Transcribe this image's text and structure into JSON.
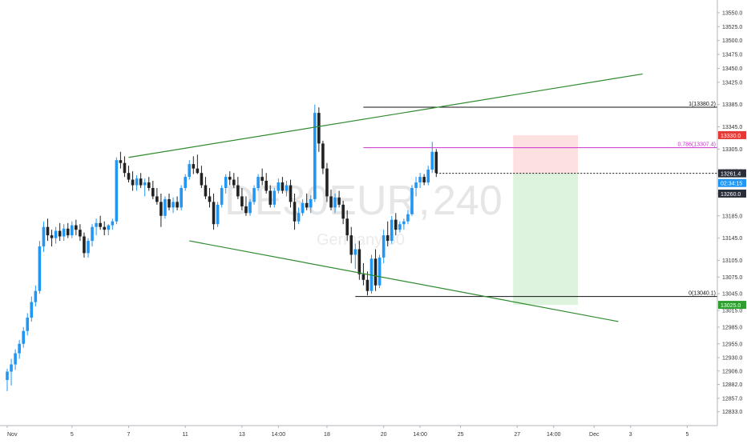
{
  "chart_data": {
    "type": "candlestick",
    "watermark": {
      "symbol": "DE30EUR",
      "interval": "240",
      "name": "Germany 30"
    },
    "colors": {
      "up": "#2196f3",
      "down": "#222222",
      "trendline": "#2e8b2e",
      "fib_level": "#cc33cc",
      "level_line": "#111111",
      "stop_zone": "#fde0e0",
      "target_zone": "#ddf3dd",
      "stop_tag": "#e53935",
      "target_tag": "#2e9e2e",
      "price_tag": "#2a2e39",
      "timer_tag": "#2196f3"
    },
    "ylim": [
      12785,
      13570
    ],
    "y_ticks": [
      "12810.0",
      "12833.0",
      "12857.0",
      "12882.0",
      "12906.0",
      "12930.0",
      "12955.0",
      "12985.0",
      "13015.0",
      "13045.0",
      "13075.0",
      "13105.0",
      "13145.0",
      "13185.0",
      "13225.0",
      "13265.0",
      "13305.0",
      "13345.0",
      "13385.0",
      "13425.0",
      "13450.0",
      "13475.0",
      "13500.0",
      "13525.0",
      "13550.0"
    ],
    "x_ticks": [
      {
        "label": "Nov",
        "bar": 0
      },
      {
        "label": "5",
        "bar": 16
      },
      {
        "label": "7",
        "bar": 30
      },
      {
        "label": "11",
        "bar": 44
      },
      {
        "label": "13",
        "bar": 58
      },
      {
        "label": "14:00",
        "bar": 67
      },
      {
        "label": "18",
        "bar": 79
      },
      {
        "label": "20",
        "bar": 93
      },
      {
        "label": "14:00",
        "bar": 102
      },
      {
        "label": "25",
        "bar": 112
      },
      {
        "label": "27",
        "bar": 126
      },
      {
        "label": "14:00",
        "bar": 135
      },
      {
        "label": "Dec",
        "bar": 145
      },
      {
        "label": "3",
        "bar": 154
      },
      {
        "label": "5",
        "bar": 168
      }
    ],
    "candles": [
      [
        12890,
        12910,
        12870,
        12905
      ],
      [
        12905,
        12928,
        12880,
        12918
      ],
      [
        12918,
        12945,
        12908,
        12938
      ],
      [
        12938,
        12962,
        12928,
        12955
      ],
      [
        12955,
        12985,
        12948,
        12978
      ],
      [
        12978,
        13010,
        12970,
        13002
      ],
      [
        13002,
        13040,
        12995,
        13030
      ],
      [
        13030,
        13060,
        13022,
        13050
      ],
      [
        13050,
        13140,
        13045,
        13130
      ],
      [
        13130,
        13175,
        13120,
        13165
      ],
      [
        13165,
        13180,
        13140,
        13150
      ],
      [
        13150,
        13160,
        13130,
        13145
      ],
      [
        13145,
        13165,
        13135,
        13158
      ],
      [
        13158,
        13172,
        13140,
        13148
      ],
      [
        13148,
        13170,
        13140,
        13162
      ],
      [
        13162,
        13172,
        13145,
        13150
      ],
      [
        13150,
        13175,
        13145,
        13168
      ],
      [
        13168,
        13178,
        13150,
        13160
      ],
      [
        13160,
        13170,
        13140,
        13148
      ],
      [
        13148,
        13155,
        13110,
        13118
      ],
      [
        13118,
        13145,
        13110,
        13140
      ],
      [
        13140,
        13170,
        13130,
        13165
      ],
      [
        13165,
        13180,
        13150,
        13172
      ],
      [
        13172,
        13185,
        13160,
        13165
      ],
      [
        13165,
        13175,
        13150,
        13160
      ],
      [
        13160,
        13170,
        13150,
        13168
      ],
      [
        13168,
        13180,
        13160,
        13175
      ],
      [
        13175,
        13290,
        13170,
        13285
      ],
      [
        13285,
        13300,
        13270,
        13280
      ],
      [
        13280,
        13292,
        13255,
        13262
      ],
      [
        13262,
        13275,
        13245,
        13250
      ],
      [
        13250,
        13265,
        13230,
        13240
      ],
      [
        13240,
        13258,
        13230,
        13252
      ],
      [
        13252,
        13262,
        13235,
        13240
      ],
      [
        13240,
        13252,
        13220,
        13245
      ],
      [
        13245,
        13255,
        13230,
        13235
      ],
      [
        13235,
        13248,
        13215,
        13220
      ],
      [
        13220,
        13235,
        13205,
        13210
      ],
      [
        13210,
        13225,
        13165,
        13185
      ],
      [
        13185,
        13220,
        13180,
        13215
      ],
      [
        13215,
        13225,
        13195,
        13200
      ],
      [
        13200,
        13218,
        13190,
        13210
      ],
      [
        13210,
        13220,
        13195,
        13200
      ],
      [
        13200,
        13240,
        13195,
        13235
      ],
      [
        13235,
        13260,
        13230,
        13255
      ],
      [
        13255,
        13285,
        13250,
        13278
      ],
      [
        13278,
        13292,
        13260,
        13270
      ],
      [
        13270,
        13295,
        13260,
        13262
      ],
      [
        13262,
        13275,
        13235,
        13240
      ],
      [
        13240,
        13255,
        13215,
        13220
      ],
      [
        13220,
        13235,
        13200,
        13210
      ],
      [
        13210,
        13225,
        13160,
        13170
      ],
      [
        13170,
        13210,
        13165,
        13205
      ],
      [
        13205,
        13240,
        13200,
        13235
      ],
      [
        13235,
        13260,
        13225,
        13255
      ],
      [
        13255,
        13265,
        13240,
        13250
      ],
      [
        13250,
        13262,
        13235,
        13240
      ],
      [
        13240,
        13255,
        13215,
        13220
      ],
      [
        13220,
        13235,
        13195,
        13202
      ],
      [
        13202,
        13220,
        13185,
        13190
      ],
      [
        13190,
        13215,
        13185,
        13210
      ],
      [
        13210,
        13240,
        13205,
        13235
      ],
      [
        13235,
        13260,
        13230,
        13255
      ],
      [
        13255,
        13270,
        13240,
        13248
      ],
      [
        13248,
        13262,
        13225,
        13230
      ],
      [
        13230,
        13240,
        13200,
        13205
      ],
      [
        13205,
        13235,
        13200,
        13230
      ],
      [
        13230,
        13252,
        13225,
        13245
      ],
      [
        13245,
        13255,
        13225,
        13230
      ],
      [
        13230,
        13248,
        13220,
        13240
      ],
      [
        13240,
        13250,
        13200,
        13210
      ],
      [
        13210,
        13225,
        13160,
        13175
      ],
      [
        13175,
        13200,
        13170,
        13190
      ],
      [
        13190,
        13215,
        13185,
        13208
      ],
      [
        13208,
        13225,
        13195,
        13200
      ],
      [
        13200,
        13222,
        13190,
        13215
      ],
      [
        13215,
        13385,
        13210,
        13370
      ],
      [
        13370,
        13380,
        13300,
        13315
      ],
      [
        13315,
        13320,
        13260,
        13270
      ],
      [
        13270,
        13280,
        13210,
        13220
      ],
      [
        13220,
        13232,
        13195,
        13200
      ],
      [
        13200,
        13225,
        13190,
        13218
      ],
      [
        13218,
        13230,
        13200,
        13205
      ],
      [
        13205,
        13212,
        13170,
        13180
      ],
      [
        13180,
        13195,
        13140,
        13150
      ],
      [
        13150,
        13165,
        13100,
        13115
      ],
      [
        13115,
        13135,
        13090,
        13125
      ],
      [
        13125,
        13140,
        13070,
        13080
      ],
      [
        13080,
        13100,
        13060,
        13070
      ],
      [
        13070,
        13085,
        13042,
        13050
      ],
      [
        13050,
        13115,
        13045,
        13108
      ],
      [
        13108,
        13125,
        13050,
        13060
      ],
      [
        13060,
        13115,
        13055,
        13110
      ],
      [
        13110,
        13160,
        13100,
        13150
      ],
      [
        13150,
        13175,
        13130,
        13140
      ],
      [
        13140,
        13185,
        13135,
        13178
      ],
      [
        13178,
        13190,
        13150,
        13160
      ],
      [
        13160,
        13175,
        13155,
        13170
      ],
      [
        13170,
        13180,
        13160,
        13175
      ],
      [
        13175,
        13195,
        13170,
        13188
      ],
      [
        13188,
        13240,
        13185,
        13235
      ],
      [
        13235,
        13255,
        13220,
        13245
      ],
      [
        13245,
        13262,
        13235,
        13255
      ],
      [
        13255,
        13260,
        13240,
        13245
      ],
      [
        13245,
        13275,
        13240,
        13268
      ],
      [
        13268,
        13318,
        13262,
        13300
      ],
      [
        13300,
        13305,
        13255,
        13262
      ]
    ],
    "fib_levels": [
      {
        "label": "1(13380.2)",
        "value": 13380.2
      },
      {
        "label": "0.786(13307.4)",
        "value": 13307.4
      },
      {
        "label": "0(13040.1)",
        "value": 13040.1
      }
    ],
    "price_tags": [
      {
        "label": "13330.0",
        "value": 13330.0,
        "role": "stop"
      },
      {
        "label": "13261.4",
        "value": 13261.4,
        "role": "price"
      },
      {
        "label": "02:34:15",
        "value": 13244,
        "role": "timer"
      },
      {
        "label": "13260.0",
        "value": 13225,
        "role": "price"
      },
      {
        "label": "13025.0",
        "value": 13025.0,
        "role": "target"
      }
    ],
    "current_price": 13261.4,
    "position": {
      "entry": 13261.4,
      "stop": 13330.0,
      "target": 13025.0,
      "start_bar": 125,
      "end_bar": 141
    },
    "trendlines": [
      {
        "x1": 30,
        "y1": 13290,
        "x2": 157,
        "y2": 13440
      },
      {
        "x1": 45,
        "y1": 13140,
        "x2": 151,
        "y2": 12995
      }
    ]
  }
}
